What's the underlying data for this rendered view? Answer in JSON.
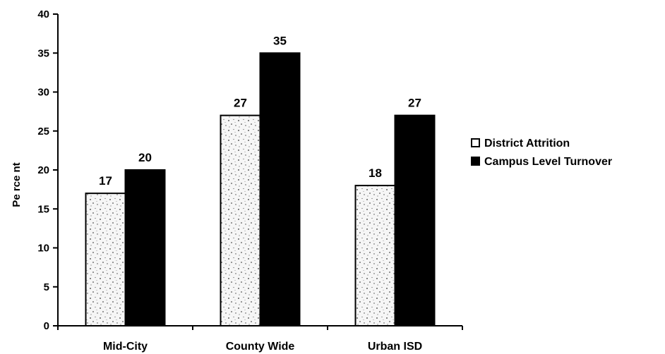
{
  "chart_data": {
    "type": "bar",
    "categories": [
      "Mid-City",
      "County Wide",
      "Urban ISD"
    ],
    "series": [
      {
        "name": "District Attrition",
        "values": [
          17,
          27,
          18
        ],
        "color": "#f4f4f4",
        "pattern": "speckled"
      },
      {
        "name": "Campus Level Turnover",
        "values": [
          20,
          35,
          27
        ],
        "color": "#000000"
      }
    ],
    "ylabel": "Pe rce nt",
    "ylim": [
      0,
      40
    ],
    "yticks": [
      0,
      5,
      10,
      15,
      20,
      25,
      30,
      35,
      40
    ],
    "legend": "right",
    "grid": false
  }
}
